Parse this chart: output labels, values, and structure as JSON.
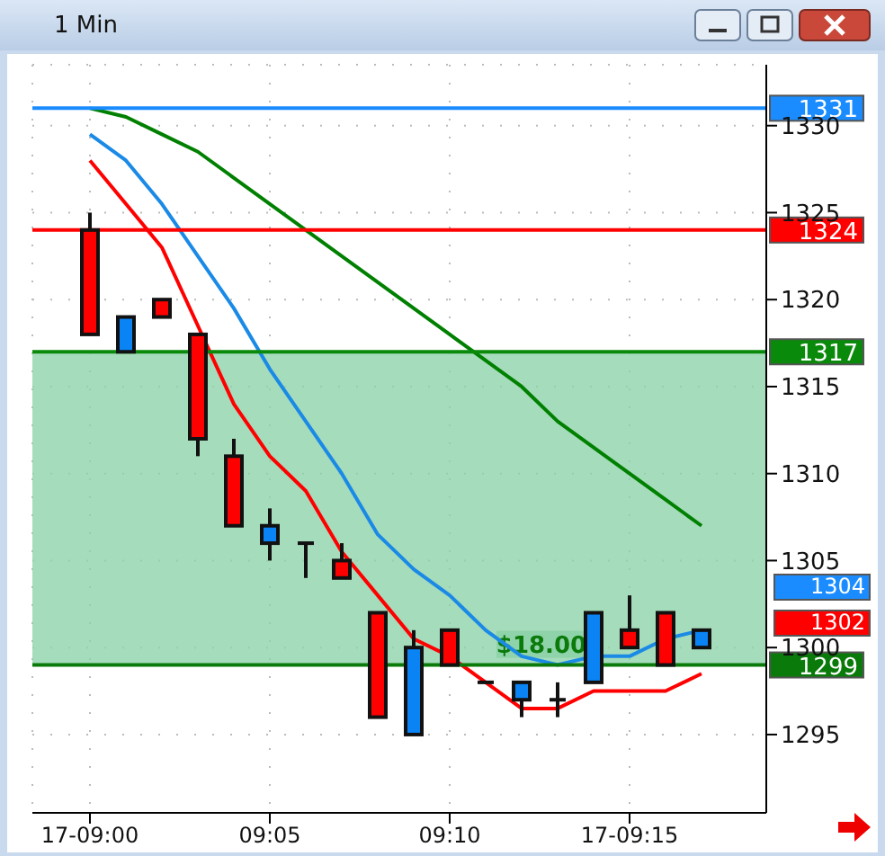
{
  "chart_data": {
    "type": "candlestick",
    "title": "1 Min",
    "categories": [
      "17-09:00",
      null,
      null,
      null,
      null,
      "09:05",
      null,
      null,
      null,
      null,
      "09:10",
      null,
      null,
      null,
      null,
      "17-09:15",
      null,
      null
    ],
    "ohlc": [
      [
        1324,
        1325,
        1318,
        1318
      ],
      [
        1317,
        1319,
        1317,
        1319
      ],
      [
        1320,
        1320,
        1319,
        1319
      ],
      [
        1318,
        1318,
        1311,
        1312
      ],
      [
        1311,
        1312,
        1307,
        1307
      ],
      [
        1306,
        1308,
        1305,
        1307
      ],
      [
        1306,
        1306,
        1304,
        1306
      ],
      [
        1305,
        1306,
        1304,
        1304
      ],
      [
        1302,
        1302,
        1296,
        1296
      ],
      [
        1295,
        1301,
        1295,
        1300
      ],
      [
        1301,
        1301,
        1299,
        1299
      ],
      [
        1298,
        1298,
        1298,
        1298
      ],
      [
        1297,
        1298,
        1296,
        1298
      ],
      [
        1297,
        1298,
        1296,
        1297
      ],
      [
        1298,
        1302,
        1298,
        1302
      ],
      [
        1301,
        1303,
        1300,
        1300
      ],
      [
        1302,
        1302,
        1299,
        1299
      ],
      [
        1300,
        1301,
        1300,
        1301
      ]
    ],
    "colors": [
      "#ff0000",
      "#0a84f5",
      "#ff0000",
      "#ff0000",
      "#ff0000",
      "#0a84f5",
      "#111111",
      "#ff0000",
      "#ff0000",
      "#0a84f5",
      "#ff0000",
      "#111111",
      "#0a84f5",
      "#111111",
      "#0a84f5",
      "#ff0000",
      "#ff0000",
      "#0a84f5"
    ],
    "series": [
      {
        "type": "line",
        "color": "#008000",
        "values": [
          1331,
          1330.5,
          1329.5,
          1328.5,
          1327,
          1325.5,
          1324,
          1322.5,
          1321,
          1319.5,
          1318,
          1316.5,
          1315,
          1313,
          1311.5,
          1310,
          1308.5,
          1307
        ]
      },
      {
        "type": "line",
        "color": "#1a8ae6",
        "values": [
          1329.5,
          1328,
          1325.5,
          1322.5,
          1319.5,
          1316,
          1313,
          1310,
          1306.5,
          1304.5,
          1303,
          1301,
          1299.5,
          1299,
          1299.5,
          1299.5,
          1300.5,
          1301
        ]
      },
      {
        "type": "line",
        "color": "#ff0000",
        "values": [
          1328,
          1325.5,
          1323,
          1318.5,
          1314,
          1311,
          1309,
          1305.5,
          1303,
          1300.5,
          1299.5,
          1298,
          1296.5,
          1296.5,
          1297.5,
          1297.5,
          1297.5,
          1298.5
        ]
      }
    ],
    "ylim": [
      1290.5,
      1333.5
    ],
    "yticks": [
      1295,
      1300,
      1305,
      1310,
      1315,
      1320,
      1325,
      1330
    ],
    "ref_lines": [
      {
        "axis": "y",
        "value": 1331,
        "label": "1331",
        "color": "#1a8cff"
      },
      {
        "axis": "y",
        "value": 1324,
        "label": "1324",
        "color": "#ff0000"
      },
      {
        "axis": "y",
        "value": 1317,
        "label": "1317",
        "color": "#0a8a0a"
      },
      {
        "axis": "y",
        "value": 1299,
        "label": "1299",
        "color": "#0a7a0a"
      }
    ],
    "bands": [
      {
        "axis": "y",
        "from": 1299,
        "to": 1317,
        "label": "$18.00",
        "color": "#8fd3aa"
      }
    ],
    "annotations": [
      "1304",
      "1302"
    ],
    "grid": true
  }
}
